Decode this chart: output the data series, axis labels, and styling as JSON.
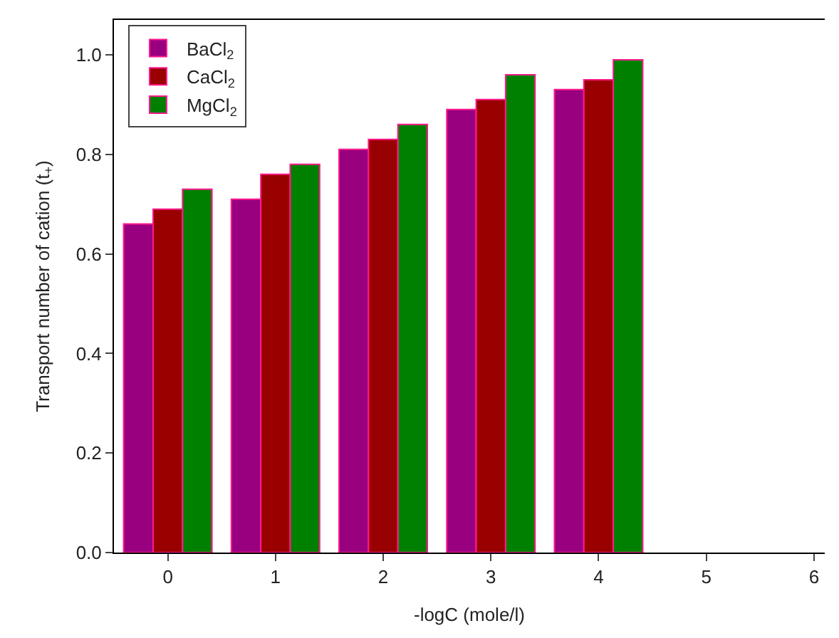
{
  "chart_data": {
    "type": "bar",
    "xlabel": "-logC (mole/l)",
    "ylabel": "Transport number of cation (t$_{+}$)",
    "x": [
      0,
      1,
      2,
      3,
      4
    ],
    "series": [
      {
        "name": "BaCl$_{2}$",
        "color": "#990080",
        "values": [
          0.66,
          0.71,
          0.81,
          0.89,
          0.93
        ]
      },
      {
        "name": "CaCl$_{2}$",
        "color": "#990000",
        "values": [
          0.69,
          0.76,
          0.83,
          0.91,
          0.95
        ]
      },
      {
        "name": "MgCl$_{2}$",
        "color": "#008000",
        "values": [
          0.73,
          0.78,
          0.86,
          0.96,
          0.99
        ]
      }
    ],
    "xlim": [
      -0.5,
      6.1
    ],
    "xticks": [
      0,
      1,
      2,
      3,
      4,
      5,
      6
    ],
    "ylim": [
      0,
      1.07
    ],
    "yticks": [
      {
        "value": 0,
        "label": "0.0"
      },
      0.2,
      0.4,
      0.6,
      0.8,
      {
        "value": 1,
        "label": "1.0"
      }
    ],
    "legend": "top left"
  }
}
